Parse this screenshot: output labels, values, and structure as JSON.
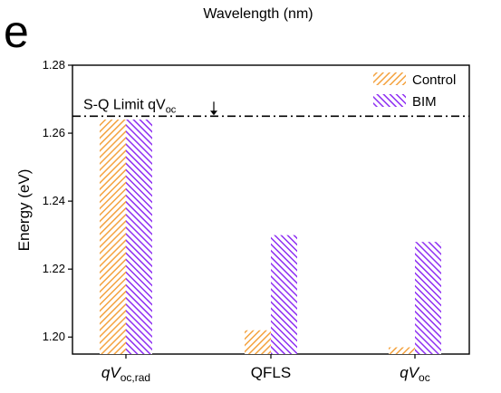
{
  "panel_label": "e",
  "chart_data": {
    "type": "bar",
    "title": "Wavelength (nm)",
    "xlabel": "",
    "ylabel": "Energy (eV)",
    "ylim": [
      1.195,
      1.28
    ],
    "yticks": [
      "1.20",
      "1.22",
      "1.24",
      "1.26",
      "1.28"
    ],
    "ytick_values": [
      1.2,
      1.22,
      1.24,
      1.26,
      1.28
    ],
    "categories": [
      {
        "main": "qV",
        "sub": "oc,rad"
      },
      {
        "main": "QFLS",
        "sub": ""
      },
      {
        "main": "qV",
        "sub": "oc"
      }
    ],
    "series": [
      {
        "name": "Control",
        "color": "#f4a340",
        "values": [
          1.264,
          1.202,
          1.197
        ]
      },
      {
        "name": "BIM",
        "color": "#8e2ff2",
        "values": [
          1.264,
          1.23,
          1.228
        ]
      }
    ],
    "reference_line": {
      "value": 1.265,
      "label_main": "S-Q Limit qV",
      "label_sub": "oc",
      "style": "dash-dot"
    },
    "legend_position": "top-right",
    "grid": false
  }
}
